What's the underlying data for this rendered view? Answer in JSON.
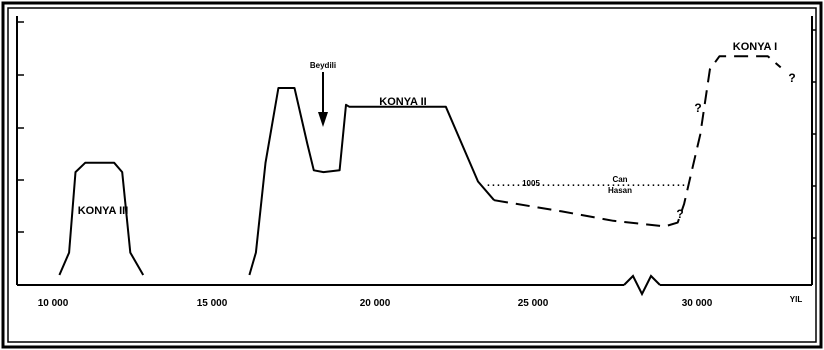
{
  "chart_data": {
    "type": "line",
    "xlabel": "YIL",
    "x_ticks": [
      "10 000",
      "15 000",
      "20 000",
      "25 000",
      "30 000"
    ],
    "xlim": [
      9000,
      34000
    ],
    "labels": {
      "konya1": "KONYA I",
      "konya2": "KONYA II",
      "konya3": "KONYA III",
      "beydili": "Beydili",
      "can": "Can",
      "hasan": "Hasan",
      "value_1005": "1005",
      "q1": "?",
      "q2": "?",
      "q3": "?"
    },
    "series": [
      {
        "segments": [
          {
            "style": "solid",
            "points": [
              [
                10200,
                0.0
              ],
              [
                10500,
                0.12
              ],
              [
                10700,
                0.55
              ],
              [
                11000,
                0.6
              ],
              [
                11900,
                0.6
              ],
              [
                12150,
                0.55
              ],
              [
                12400,
                0.12
              ],
              [
                12800,
                0.0
              ]
            ]
          },
          {
            "style": "solid",
            "points": [
              [
                16100,
                0.0
              ],
              [
                16300,
                0.12
              ],
              [
                16600,
                0.6
              ],
              [
                17000,
                1.0
              ],
              [
                17500,
                1.0
              ],
              [
                17900,
                0.7
              ],
              [
                18100,
                0.56
              ],
              [
                18400,
                0.55
              ],
              [
                18900,
                0.56
              ],
              [
                19100,
                0.91
              ],
              [
                19200,
                0.9
              ],
              [
                22200,
                0.9
              ],
              [
                23200,
                0.5
              ],
              [
                23700,
                0.4
              ]
            ]
          },
          {
            "style": "dashed",
            "points": [
              [
                23700,
                0.4
              ],
              [
                25800,
                0.34
              ],
              [
                27400,
                0.29
              ],
              [
                29000,
                0.26
              ],
              [
                29400,
                0.28
              ],
              [
                29600,
                0.38
              ],
              [
                30100,
                0.75
              ],
              [
                30400,
                1.1
              ],
              [
                30700,
                1.17
              ],
              [
                32200,
                1.17
              ],
              [
                32600,
                1.11
              ]
            ]
          },
          {
            "style": "dotted",
            "points": [
              [
                23500,
                0.48
              ],
              [
                29700,
                0.48
              ]
            ]
          }
        ]
      }
    ]
  }
}
